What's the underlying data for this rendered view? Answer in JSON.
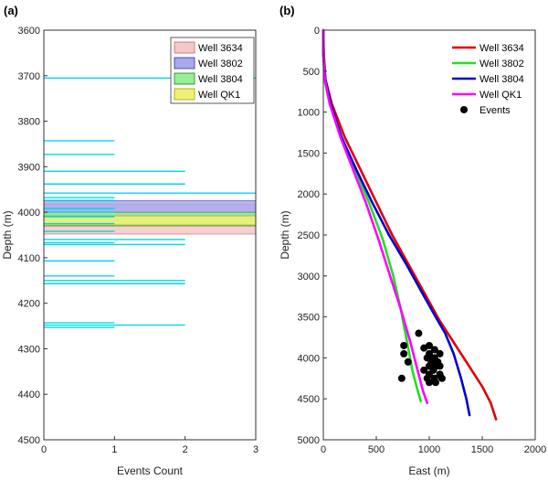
{
  "chart_data": [
    {
      "panel_label": "(a)",
      "type": "bar",
      "orientation": "horizontal",
      "xlabel": "Events Count",
      "ylabel": "Depth (m)",
      "xlim": [
        0,
        3
      ],
      "ylim": [
        3600,
        4500
      ],
      "y_reversed": true,
      "grid": false,
      "xticks": [
        0,
        1,
        2,
        3
      ],
      "yticks": [
        3600,
        3700,
        3800,
        3900,
        4000,
        4100,
        4200,
        4300,
        4400,
        4500
      ],
      "event_color": "#00d8e8",
      "events": [
        {
          "depth": 3705,
          "count": 3
        },
        {
          "depth": 3843,
          "count": 1
        },
        {
          "depth": 3873,
          "count": 1
        },
        {
          "depth": 3910,
          "count": 2
        },
        {
          "depth": 3938,
          "count": 2
        },
        {
          "depth": 3958,
          "count": 3
        },
        {
          "depth": 3968,
          "count": 1
        },
        {
          "depth": 3974,
          "count": 1
        },
        {
          "depth": 3992,
          "count": 1
        },
        {
          "depth": 4000,
          "count": 1
        },
        {
          "depth": 4010,
          "count": 1
        },
        {
          "depth": 4025,
          "count": 1
        },
        {
          "depth": 4042,
          "count": 1
        },
        {
          "depth": 4060,
          "count": 2
        },
        {
          "depth": 4067,
          "count": 1
        },
        {
          "depth": 4071,
          "count": 2
        },
        {
          "depth": 4107,
          "count": 1
        },
        {
          "depth": 4140,
          "count": 1
        },
        {
          "depth": 4150,
          "count": 2
        },
        {
          "depth": 4157,
          "count": 2
        },
        {
          "depth": 4243,
          "count": 1
        },
        {
          "depth": 4248,
          "count": 2
        },
        {
          "depth": 4253,
          "count": 1
        }
      ],
      "wells": [
        {
          "name": "Well 3634",
          "color": "#f4c8c8",
          "edge": "#d06060",
          "top": 3982,
          "bottom": 4048
        },
        {
          "name": "Well 3802",
          "color": "#a8a8ee",
          "edge": "#3030a0",
          "top": 3975,
          "bottom": 4008
        },
        {
          "name": "Well 3804",
          "color": "#98ee98",
          "edge": "#208020",
          "top": 4000,
          "bottom": 4030
        },
        {
          "name": "Well QK1",
          "color": "#f0f078",
          "edge": "#a0a000",
          "top": 4008,
          "bottom": 4028
        }
      ],
      "legend": {
        "placement": "top-right",
        "entries": [
          "Well 3634",
          "Well 3802",
          "Well 3804",
          "Well QK1"
        ]
      }
    },
    {
      "panel_label": "(b)",
      "type": "line",
      "xlabel": "East (m)",
      "ylabel": "Depth (m)",
      "xlim": [
        0,
        2000
      ],
      "ylim": [
        0,
        5000
      ],
      "y_reversed": true,
      "grid": false,
      "xticks": [
        0,
        500,
        1000,
        1500,
        2000
      ],
      "yticks": [
        0,
        500,
        1000,
        1500,
        2000,
        2500,
        3000,
        3500,
        4000,
        4500,
        5000
      ],
      "series": [
        {
          "name": "Well 3634",
          "color": "#e00000",
          "points": [
            [
              0,
              0
            ],
            [
              5,
              300
            ],
            [
              20,
              600
            ],
            [
              80,
              900
            ],
            [
              200,
              1300
            ],
            [
              350,
              1700
            ],
            [
              500,
              2100
            ],
            [
              650,
              2500
            ],
            [
              800,
              2850
            ],
            [
              950,
              3200
            ],
            [
              1100,
              3550
            ],
            [
              1250,
              3850
            ],
            [
              1400,
              4150
            ],
            [
              1500,
              4350
            ],
            [
              1580,
              4550
            ],
            [
              1630,
              4750
            ]
          ]
        },
        {
          "name": "Well 3802",
          "color": "#20e020",
          "points": [
            [
              0,
              0
            ],
            [
              0,
              300
            ],
            [
              10,
              600
            ],
            [
              60,
              900
            ],
            [
              170,
              1300
            ],
            [
              300,
              1700
            ],
            [
              430,
              2100
            ],
            [
              560,
              2550
            ],
            [
              660,
              3000
            ],
            [
              730,
              3400
            ],
            [
              790,
              3800
            ],
            [
              840,
              4150
            ],
            [
              880,
              4350
            ],
            [
              920,
              4530
            ]
          ]
        },
        {
          "name": "Well 3804",
          "color": "#0000d0",
          "points": [
            [
              0,
              0
            ],
            [
              0,
              300
            ],
            [
              20,
              600
            ],
            [
              70,
              900
            ],
            [
              170,
              1300
            ],
            [
              310,
              1700
            ],
            [
              460,
              2100
            ],
            [
              620,
              2500
            ],
            [
              780,
              2850
            ],
            [
              930,
              3200
            ],
            [
              1060,
              3500
            ],
            [
              1150,
              3700
            ],
            [
              1230,
              3950
            ],
            [
              1300,
              4250
            ],
            [
              1350,
              4500
            ],
            [
              1380,
              4700
            ]
          ]
        },
        {
          "name": "Well QK1",
          "color": "#ff00ff",
          "points": [
            [
              0,
              0
            ],
            [
              0,
              300
            ],
            [
              15,
              600
            ],
            [
              60,
              900
            ],
            [
              160,
              1300
            ],
            [
              280,
              1700
            ],
            [
              400,
              2100
            ],
            [
              520,
              2550
            ],
            [
              630,
              3000
            ],
            [
              730,
              3400
            ],
            [
              820,
              3800
            ],
            [
              890,
              4150
            ],
            [
              940,
              4400
            ],
            [
              980,
              4550
            ]
          ]
        },
        {
          "name": "Events",
          "type": "scatter",
          "color": "#000000",
          "points": [
            [
              760,
              3850
            ],
            [
              760,
              3950
            ],
            [
              800,
              4050
            ],
            [
              740,
              4250
            ],
            [
              900,
              3700
            ],
            [
              950,
              3880
            ],
            [
              1000,
              3850
            ],
            [
              1050,
              3900
            ],
            [
              1100,
              3950
            ],
            [
              1000,
              3950
            ],
            [
              980,
              4000
            ],
            [
              1050,
              4000
            ],
            [
              1020,
              4050
            ],
            [
              1080,
              4050
            ],
            [
              1000,
              4100
            ],
            [
              1060,
              4100
            ],
            [
              950,
              4150
            ],
            [
              1040,
              4150
            ],
            [
              1000,
              4200
            ],
            [
              1100,
              4200
            ],
            [
              980,
              4250
            ],
            [
              1050,
              4250
            ],
            [
              1120,
              4250
            ],
            [
              1000,
              4300
            ],
            [
              1060,
              4300
            ],
            [
              1020,
              4000
            ],
            [
              1100,
              4100
            ]
          ]
        }
      ],
      "legend": {
        "placement": "top-right",
        "entries": [
          "Well 3634",
          "Well 3802",
          "Well 3804",
          "Well QK1",
          "Events"
        ]
      }
    }
  ]
}
